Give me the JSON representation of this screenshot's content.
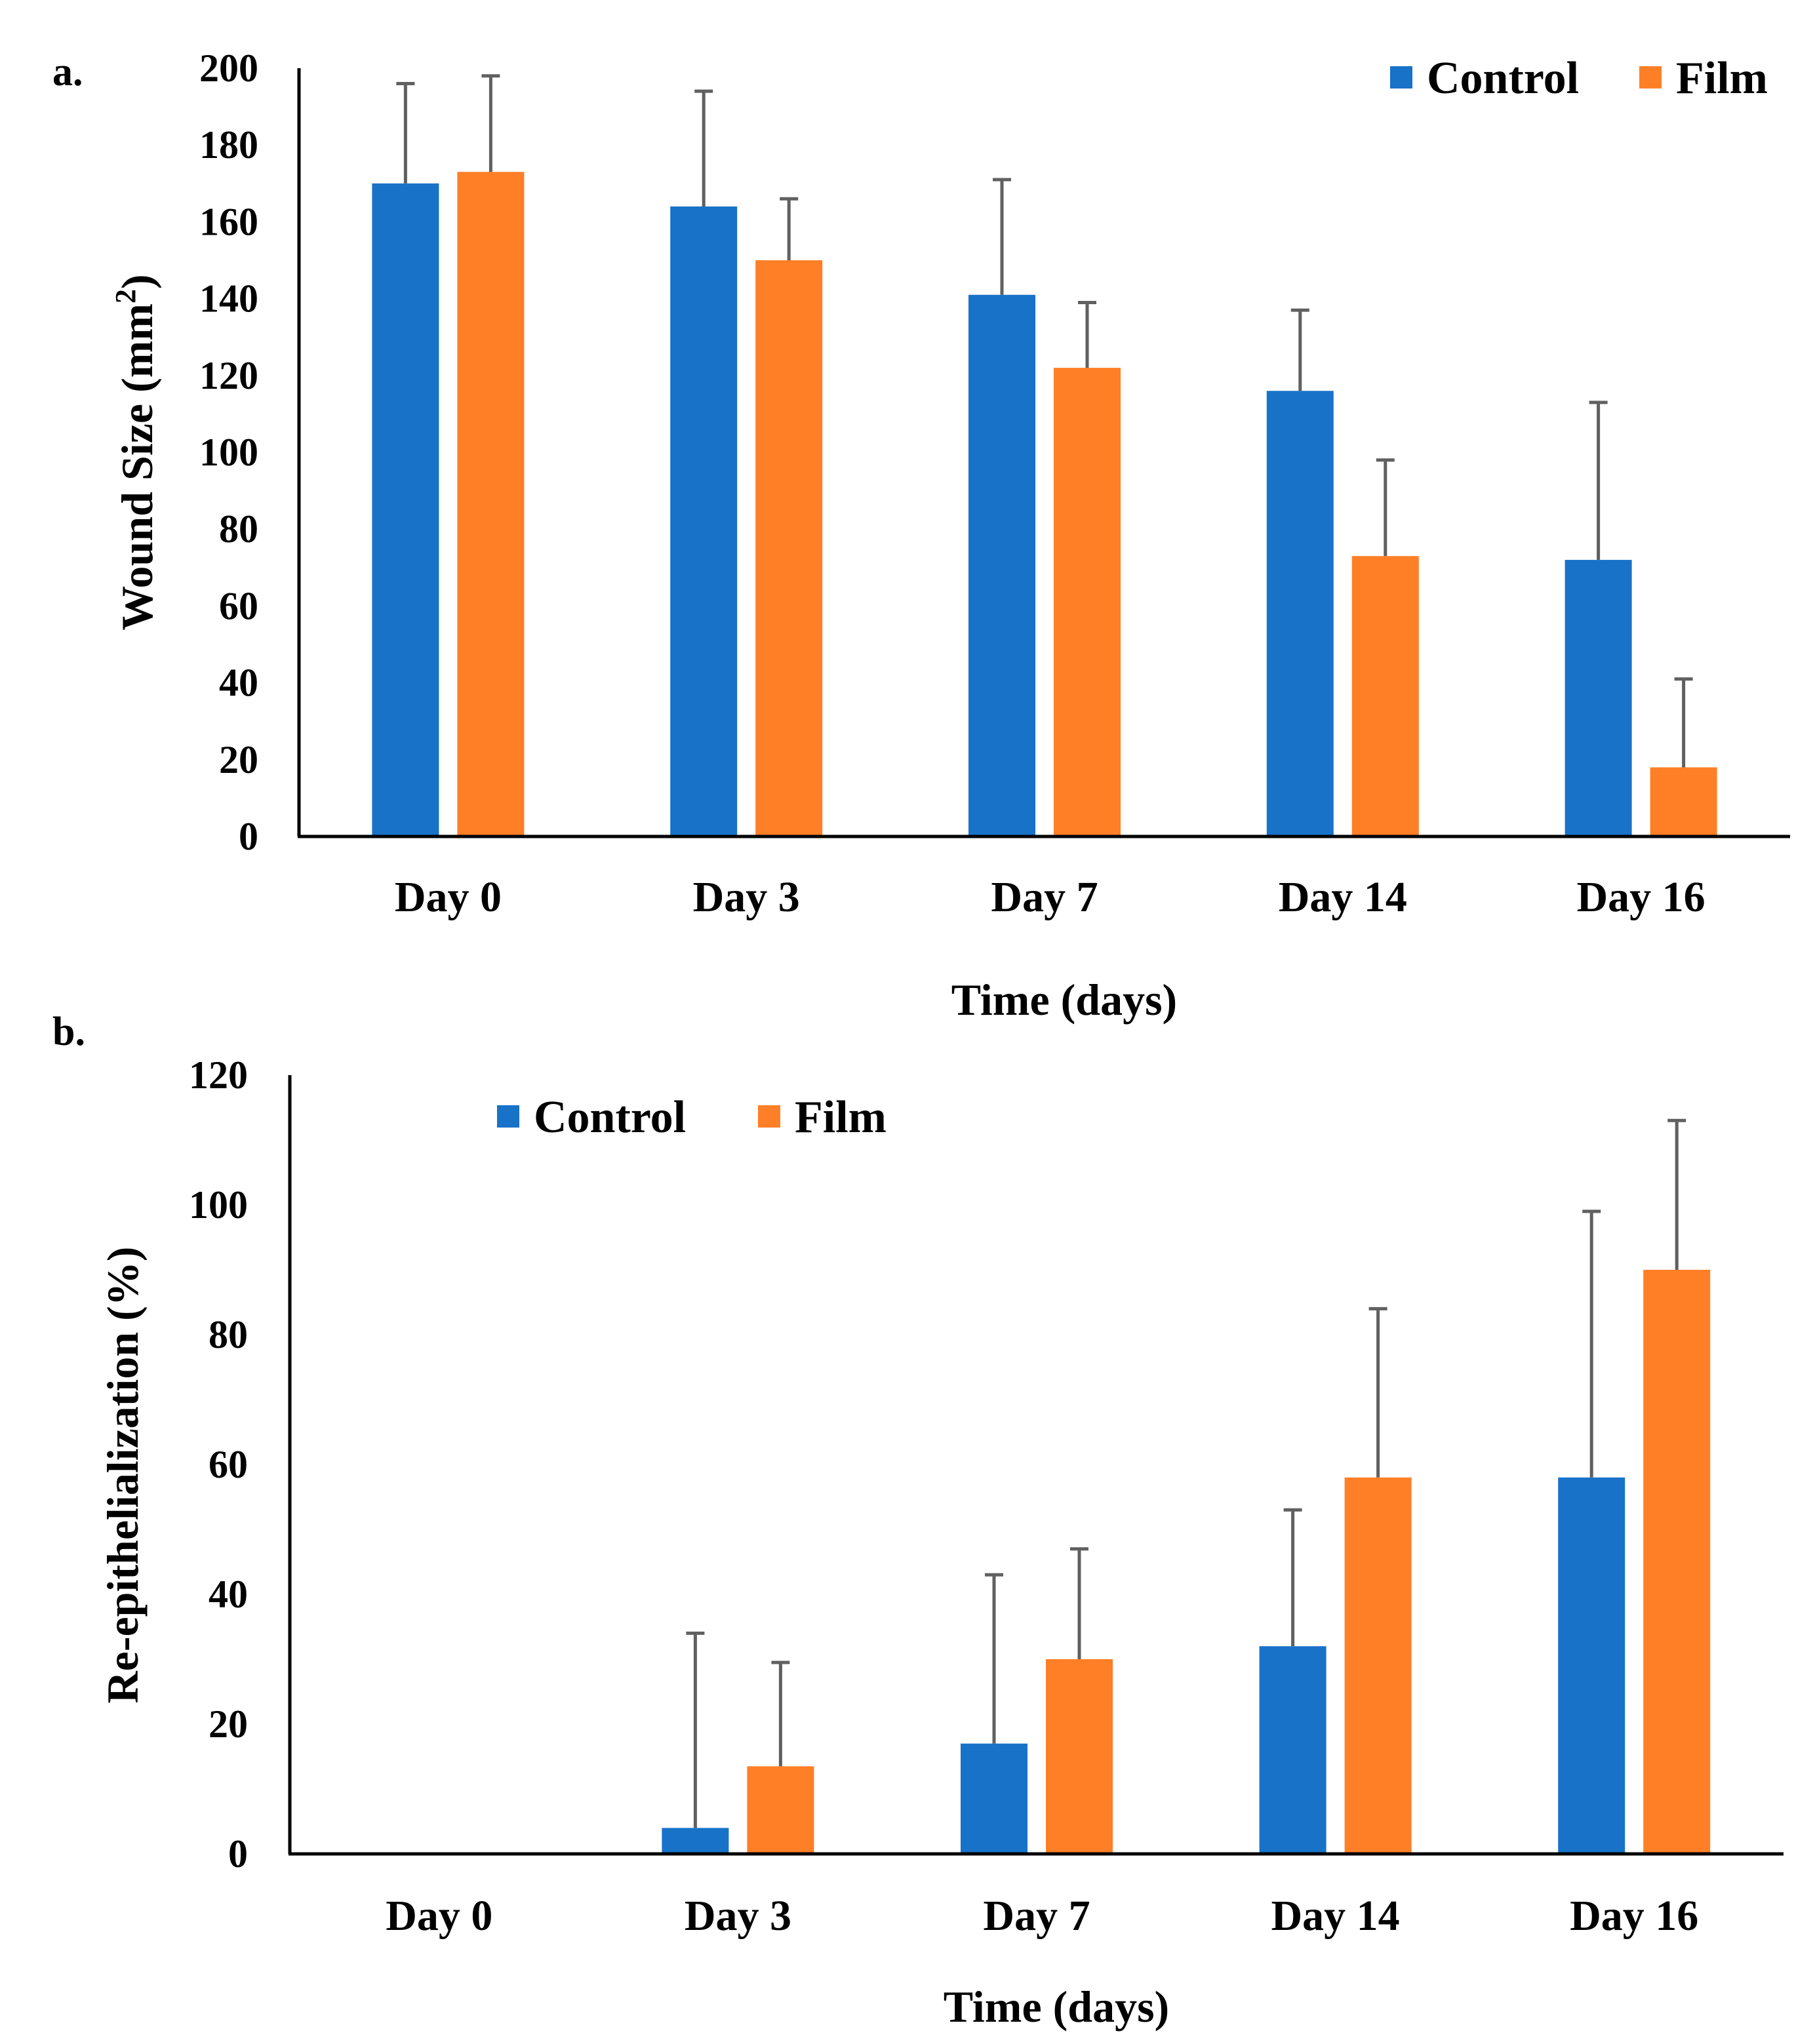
{
  "chart_data": [
    {
      "type": "bar",
      "panel_label": "a.",
      "title": "",
      "xlabel": "Time (days)",
      "ylabel": "Wound Size (mm²)",
      "ylabel_parts": {
        "main": "Wound Size (mm",
        "sup": "2",
        "end": ")"
      },
      "categories": [
        "Day 0",
        "Day 3",
        "Day 7",
        "Day 14",
        "Day 16"
      ],
      "ylim": [
        0,
        200
      ],
      "yticks": [
        "0",
        "20",
        "40",
        "60",
        "80",
        "100",
        "120",
        "140",
        "160",
        "180",
        "200"
      ],
      "grid": false,
      "legend_position": "top-right",
      "series": [
        {
          "name": "Control",
          "color": "#1872C8",
          "values": [
            170,
            164,
            141,
            116,
            72
          ],
          "errors": [
            26,
            30,
            30,
            21,
            41
          ]
        },
        {
          "name": "Film",
          "color": "#FF7F27",
          "values": [
            173,
            150,
            122,
            73,
            18
          ],
          "errors": [
            25,
            16,
            17,
            25,
            23
          ]
        }
      ],
      "error_bar_color": "#606060"
    },
    {
      "type": "bar",
      "panel_label": "b.",
      "title": "",
      "xlabel": "Time (days)",
      "ylabel": "Re-epithelialization  (%)",
      "categories": [
        "Day 0",
        "Day 3",
        "Day 7",
        "Day 14",
        "Day 16"
      ],
      "ylim": [
        0,
        120
      ],
      "yticks": [
        "0",
        "20",
        "40",
        "60",
        "80",
        "100",
        "120"
      ],
      "grid": false,
      "legend_position": "top-left",
      "series": [
        {
          "name": "Control",
          "color": "#1872C8",
          "values": [
            0,
            4,
            17,
            32,
            58
          ],
          "errors": [
            0,
            30,
            26,
            21,
            41
          ]
        },
        {
          "name": "Film",
          "color": "#FF7F27",
          "values": [
            0,
            13.5,
            30,
            58,
            90
          ],
          "errors": [
            0,
            16,
            17,
            26,
            23
          ]
        }
      ],
      "error_bar_color": "#606060"
    }
  ]
}
